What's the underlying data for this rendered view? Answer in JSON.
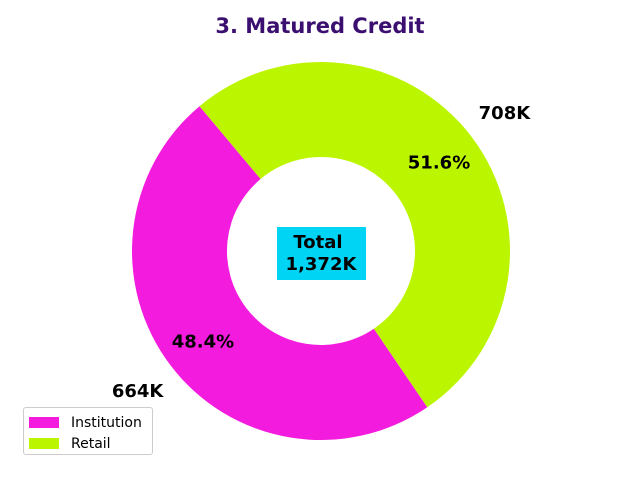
{
  "chart_data": {
    "type": "pie",
    "title": "3. Matured Credit",
    "title_color": "#3b0f70",
    "donut": true,
    "start_angle_deg": 130,
    "direction": "counterclockwise",
    "slices": [
      {
        "label": "Institution",
        "value": 664,
        "value_label": "664K",
        "percent_label": "48.4%",
        "color": "#f31bdd"
      },
      {
        "label": "Retail",
        "value": 708,
        "value_label": "708K",
        "percent_label": "51.6%",
        "color": "#bcf500"
      }
    ],
    "center_label": {
      "line1": "Total",
      "line2": "1,372K",
      "background": "#00d4f5"
    },
    "legend": {
      "position": "lower-left"
    }
  }
}
